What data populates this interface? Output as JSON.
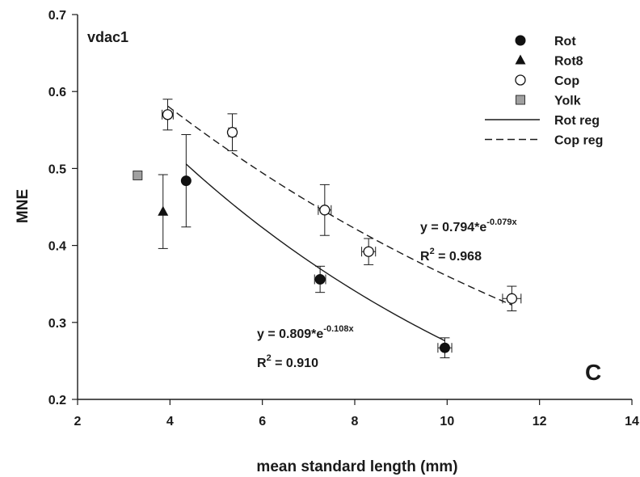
{
  "chart_data": {
    "type": "scatter",
    "panel_label": "C",
    "gene_label": "vdac1",
    "xlabel": "mean standard length (mm)",
    "ylabel": "MNE",
    "xlim": [
      2,
      14
    ],
    "ylim": [
      0.2,
      0.7
    ],
    "x_ticks": [
      "2",
      "4",
      "6",
      "8",
      "10",
      "12",
      "14"
    ],
    "y_ticks": [
      "0.2",
      "0.3",
      "0.4",
      "0.5",
      "0.6",
      "0.7"
    ],
    "grid": false,
    "legend_position": "top-right",
    "series": [
      {
        "name": "Rot",
        "marker": "circle-filled",
        "color": "#111111",
        "points": [
          {
            "x": 4.35,
            "y": 0.484,
            "yerr": 0.06,
            "xerr": 0
          },
          {
            "x": 7.25,
            "y": 0.356,
            "yerr": 0.017,
            "xerr": 0.12
          },
          {
            "x": 9.95,
            "y": 0.267,
            "yerr": 0.013,
            "xerr": 0.15
          }
        ]
      },
      {
        "name": "Rot8",
        "marker": "triangle-filled",
        "color": "#111111",
        "points": [
          {
            "x": 3.85,
            "y": 0.444,
            "yerr": 0.048,
            "xerr": 0
          }
        ]
      },
      {
        "name": "Cop",
        "marker": "circle-open",
        "color": "#111111",
        "points": [
          {
            "x": 3.95,
            "y": 0.57,
            "yerr": 0.02,
            "xerr": 0.12
          },
          {
            "x": 5.35,
            "y": 0.547,
            "yerr": 0.024,
            "xerr": 0.08
          },
          {
            "x": 7.35,
            "y": 0.446,
            "yerr": 0.033,
            "xerr": 0.14
          },
          {
            "x": 8.3,
            "y": 0.392,
            "yerr": 0.017,
            "xerr": 0.15
          },
          {
            "x": 11.4,
            "y": 0.331,
            "yerr": 0.016,
            "xerr": 0.2
          }
        ]
      },
      {
        "name": "Yolk",
        "marker": "square-gray",
        "color": "#a0a0a0",
        "points": [
          {
            "x": 3.3,
            "y": 0.491,
            "yerr": 0,
            "xerr": 0
          }
        ]
      },
      {
        "name": "Rot reg",
        "type": "line",
        "style": "solid",
        "model": {
          "a": 0.809,
          "b": -0.108
        },
        "x_range": [
          4.35,
          9.95
        ]
      },
      {
        "name": "Cop reg",
        "type": "line",
        "style": "dashed",
        "model": {
          "a": 0.794,
          "b": -0.079
        },
        "x_range": [
          3.95,
          11.4
        ]
      }
    ],
    "annotations": {
      "cop_equation": {
        "prefix": "y = 0.794*e",
        "exponent": "-0.079x",
        "r2_value": "0.968"
      },
      "rot_equation": {
        "prefix": "y = 0.809*e",
        "exponent": "-0.108x",
        "r2_value": "0.910"
      },
      "r2_label": "R",
      "r2_power": "2",
      "r2_equals": " = "
    }
  }
}
